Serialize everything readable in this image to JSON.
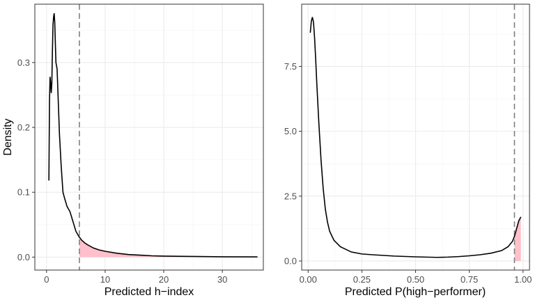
{
  "colors": {
    "grid_major": "#ebebeb",
    "grid_minor": "#f5f5f5",
    "panel_border": "#333333",
    "density_line": "#000000",
    "threshold_line": "#7f7f7f",
    "tail_fill": "#ffc0cb"
  },
  "chart_data": [
    {
      "type": "area",
      "xlabel": "Predicted h−index",
      "ylabel": "Density",
      "xlim": [
        -2,
        37
      ],
      "ylim": [
        -0.02,
        0.39
      ],
      "x_ticks": [
        0,
        10,
        20,
        30
      ],
      "x_tick_labels": [
        "0",
        "10",
        "20",
        "30"
      ],
      "y_ticks": [
        0.0,
        0.1,
        0.2,
        0.3
      ],
      "y_tick_labels": [
        "0.0",
        "0.1",
        "0.2",
        "0.3"
      ],
      "grid": true,
      "threshold": 5.6,
      "shaded_tail": "right of threshold",
      "series": [
        {
          "x": [
            0.4,
            0.5,
            0.6,
            0.7,
            0.8,
            0.9,
            1.0,
            1.1,
            1.2,
            1.3,
            1.4,
            1.5,
            1.6,
            1.7,
            1.8,
            2.0,
            2.2,
            2.5,
            2.8,
            3.1,
            3.5,
            4.0,
            4.5,
            5.0,
            5.5,
            6.0,
            6.5,
            7.0,
            8.0,
            9.0,
            10.0,
            12.0,
            14.0,
            16.0,
            18.0,
            20.0,
            25.0,
            30.0,
            36.0
          ],
          "y": [
            0.118,
            0.24,
            0.278,
            0.268,
            0.253,
            0.268,
            0.318,
            0.358,
            0.37,
            0.376,
            0.362,
            0.33,
            0.3,
            0.295,
            0.29,
            0.24,
            0.19,
            0.14,
            0.1,
            0.09,
            0.078,
            0.07,
            0.055,
            0.04,
            0.032,
            0.026,
            0.022,
            0.019,
            0.014,
            0.011,
            0.009,
            0.006,
            0.004,
            0.003,
            0.002,
            0.0015,
            0.001,
            0.0005,
            0.0003
          ]
        }
      ]
    },
    {
      "type": "area",
      "xlabel": "Predicted P(high−performer)",
      "ylabel": "",
      "xlim": [
        -0.03,
        1.03
      ],
      "ylim": [
        -0.35,
        9.9
      ],
      "x_ticks": [
        0.0,
        0.25,
        0.5,
        0.75,
        1.0
      ],
      "x_tick_labels": [
        "0.00",
        "0.25",
        "0.50",
        "0.75",
        "1.00"
      ],
      "y_ticks": [
        0.0,
        2.5,
        5.0,
        7.5
      ],
      "y_tick_labels": [
        "0.0",
        "2.5",
        "5.0",
        "7.5"
      ],
      "grid": true,
      "threshold": 0.96,
      "shaded_tail": "right of threshold",
      "series": [
        {
          "x": [
            0.01,
            0.015,
            0.02,
            0.025,
            0.03,
            0.035,
            0.04,
            0.05,
            0.06,
            0.07,
            0.08,
            0.09,
            0.1,
            0.12,
            0.15,
            0.2,
            0.25,
            0.3,
            0.4,
            0.5,
            0.6,
            0.65,
            0.7,
            0.75,
            0.8,
            0.85,
            0.9,
            0.93,
            0.95,
            0.96,
            0.97,
            0.98,
            0.99
          ],
          "y": [
            8.8,
            9.25,
            9.4,
            9.2,
            8.6,
            7.8,
            6.9,
            5.3,
            3.9,
            2.8,
            2.0,
            1.5,
            1.15,
            0.8,
            0.55,
            0.35,
            0.27,
            0.24,
            0.19,
            0.16,
            0.14,
            0.15,
            0.17,
            0.2,
            0.24,
            0.3,
            0.4,
            0.55,
            0.75,
            0.95,
            1.25,
            1.55,
            1.7
          ]
        }
      ]
    }
  ]
}
